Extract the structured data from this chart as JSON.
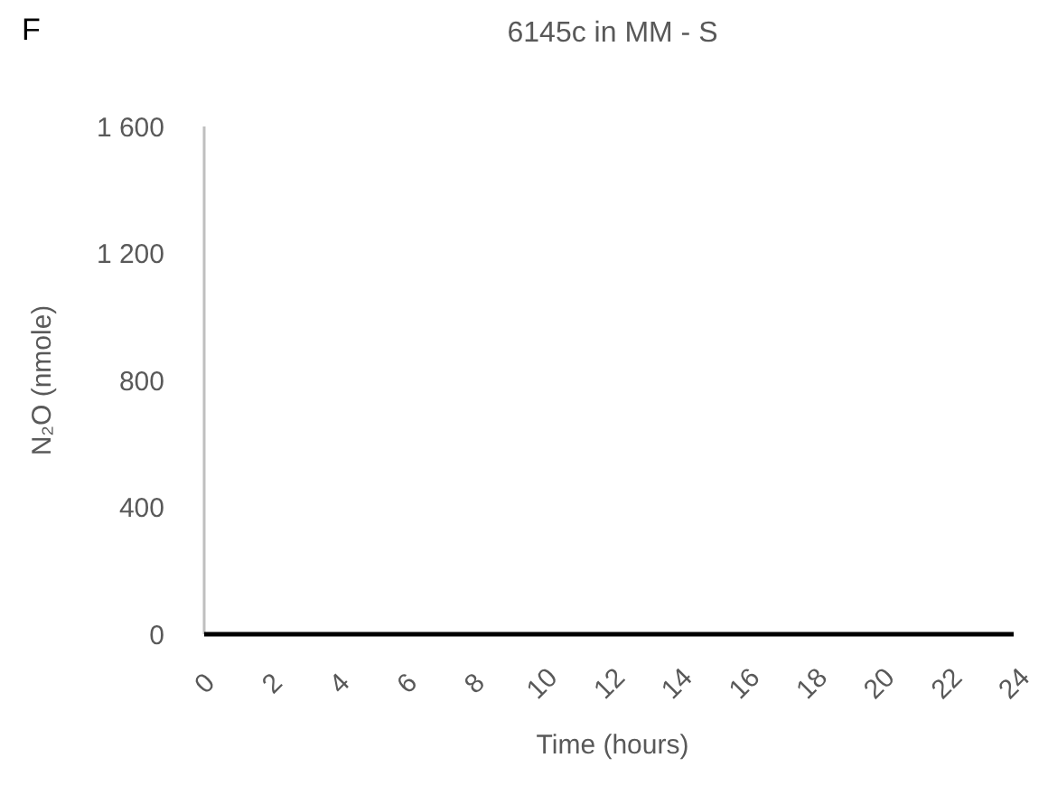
{
  "chart_data": {
    "type": "line",
    "title": "6145c in MM - S",
    "xlabel": "Time (hours)",
    "ylabel": "N₂O (nmole)",
    "annotations": [
      "F"
    ],
    "x": [
      0,
      24
    ],
    "series": [
      {
        "color": "#000000",
        "values": [
          0,
          0
        ]
      }
    ],
    "xlim": [
      0,
      24
    ],
    "xticks": [
      0,
      2,
      4,
      6,
      8,
      10,
      12,
      14,
      16,
      18,
      20,
      22,
      24
    ],
    "ylim": [
      0,
      1600
    ],
    "yticks": [
      0,
      {
        "value": 400,
        "label": "400"
      },
      {
        "value": 800,
        "label": "800"
      },
      {
        "value": 1200,
        "label": "1 200"
      },
      {
        "value": 1600,
        "label": "1 600"
      }
    ],
    "grid": false,
    "marker": "none",
    "line_style": "solid"
  }
}
